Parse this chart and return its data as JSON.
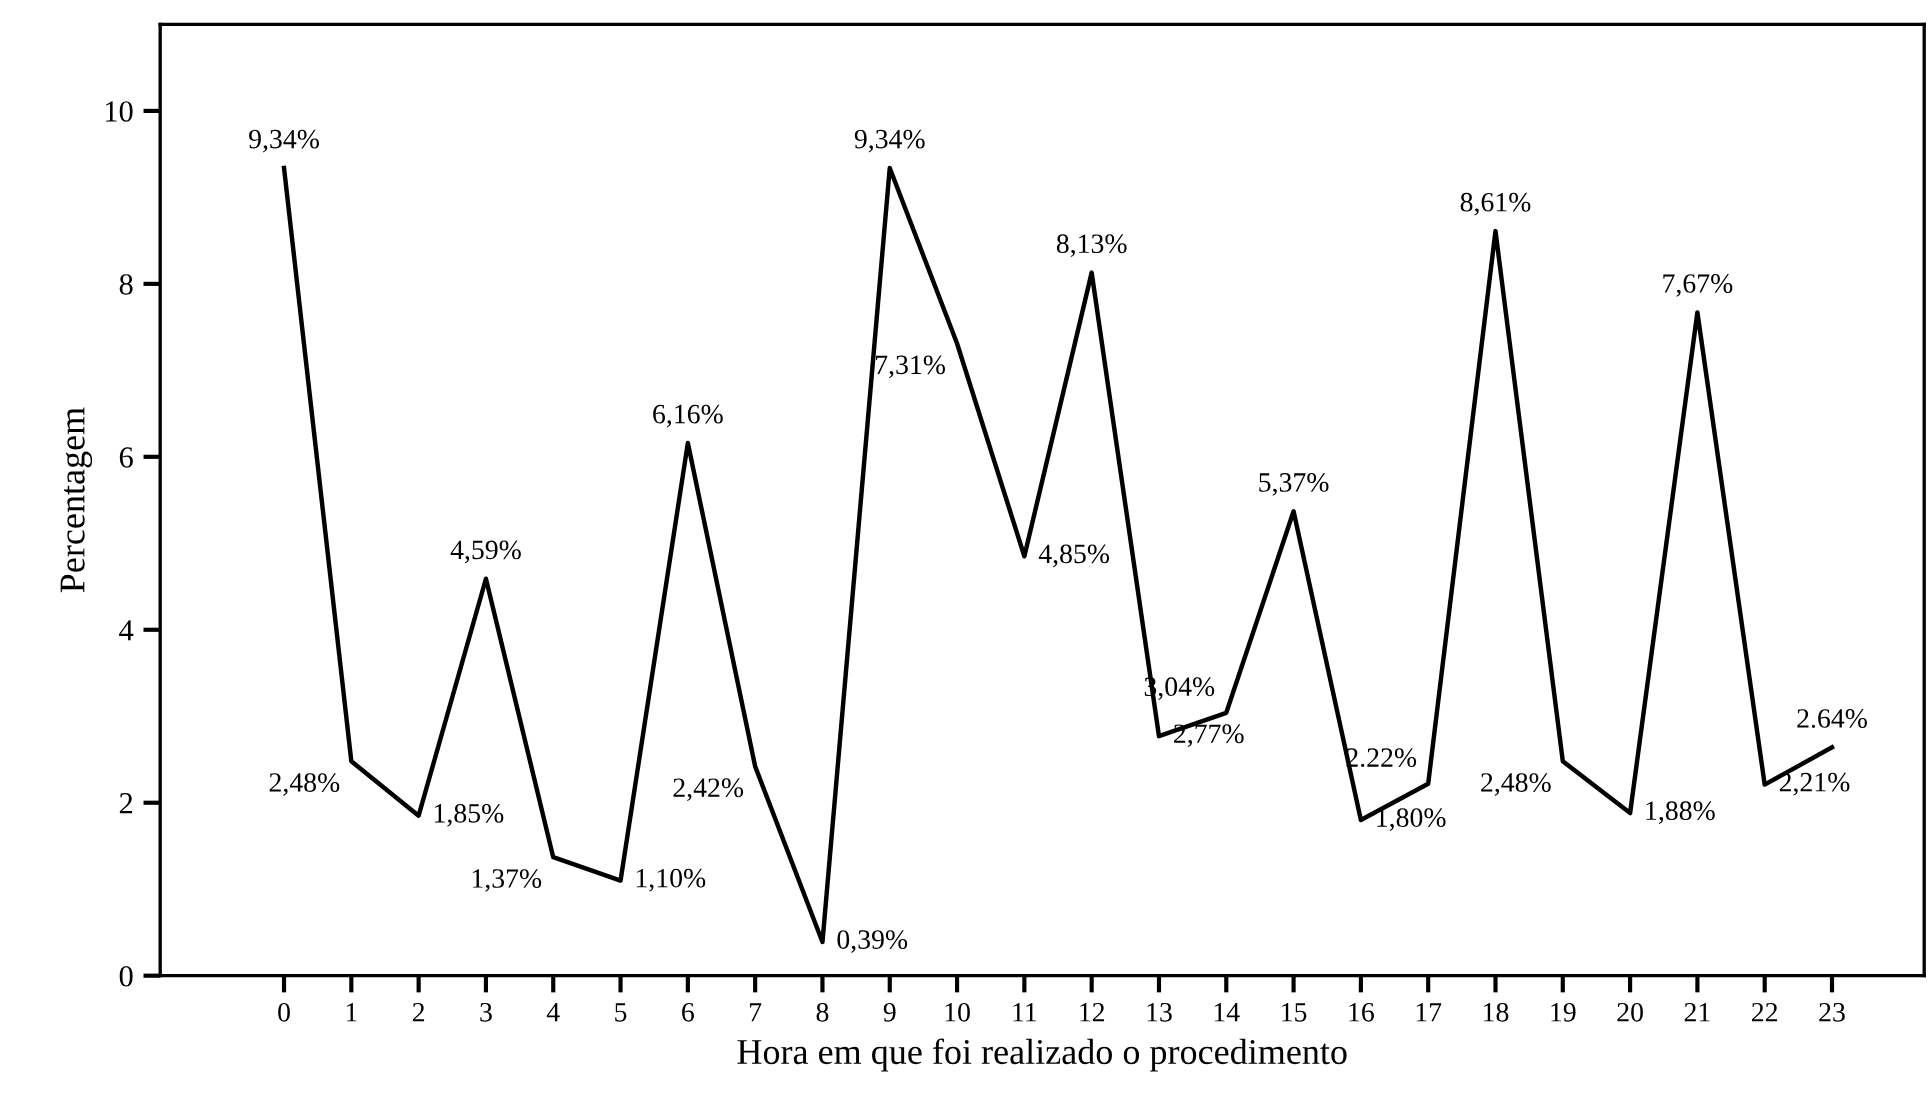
{
  "chart_data": {
    "type": "line",
    "xlabel": "Hora em que foi realizado o procedimento",
    "ylabel": "Percentagem",
    "categories": [
      "0",
      "1",
      "2",
      "3",
      "4",
      "5",
      "6",
      "7",
      "8",
      "9",
      "10",
      "11",
      "12",
      "13",
      "14",
      "15",
      "16",
      "17",
      "18",
      "19",
      "20",
      "21",
      "22",
      "23"
    ],
    "series": [
      {
        "color": "#000000",
        "values": [
          9.34,
          2.48,
          1.85,
          4.59,
          1.37,
          1.1,
          6.16,
          2.42,
          0.39,
          9.34,
          7.31,
          4.85,
          8.13,
          2.77,
          3.04,
          5.37,
          1.8,
          2.22,
          8.61,
          2.48,
          1.88,
          7.67,
          2.21,
          2.64
        ],
        "value_labels": [
          "9,34%",
          "2,48%",
          "1,85%",
          "4,59%",
          "1,37%",
          "1,10%",
          "6,16%",
          "2,42%",
          "0,39%",
          "9,34%",
          "7,31%",
          "4,85%",
          "8,13%",
          "2,77%",
          "3,04%",
          "5,37%",
          "1,80%",
          "2.22%",
          "8,61%",
          "2,48%",
          "1,88%",
          "7,67%",
          "2,21%",
          "2.64%"
        ]
      }
    ],
    "ylim": [
      0,
      11
    ],
    "yticks": [
      0,
      2,
      4,
      6,
      8,
      10
    ],
    "grid": false,
    "marker": "none",
    "line_style": "solid",
    "legend": false
  }
}
